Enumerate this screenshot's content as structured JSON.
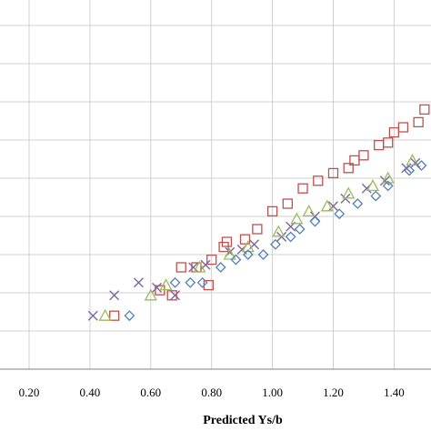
{
  "chart_data": {
    "type": "scatter",
    "title": "",
    "xlabel": "Predicted Ys/b",
    "ylabel": "",
    "xlim": [
      0.0,
      1.5
    ],
    "ylim": [
      0.0,
      1.5
    ],
    "x_ticks": [
      "0.20",
      "0.40",
      "0.60",
      "0.80",
      "1.00",
      "1.20",
      "1.40"
    ],
    "grid": true,
    "legend": "none visible",
    "series": [
      {
        "marker": "square",
        "color": "#c0504d",
        "points": [
          [
            0.48,
            0.21
          ],
          [
            0.63,
            0.31
          ],
          [
            0.67,
            0.29
          ],
          [
            0.7,
            0.4
          ],
          [
            0.75,
            0.4
          ],
          [
            0.79,
            0.33
          ],
          [
            0.8,
            0.43
          ],
          [
            0.84,
            0.48
          ],
          [
            0.85,
            0.5
          ],
          [
            0.91,
            0.51
          ],
          [
            0.95,
            0.55
          ],
          [
            1.0,
            0.62
          ],
          [
            1.05,
            0.65
          ],
          [
            1.1,
            0.71
          ],
          [
            1.15,
            0.74
          ],
          [
            1.2,
            0.77
          ],
          [
            1.25,
            0.79
          ],
          [
            1.27,
            0.82
          ],
          [
            1.3,
            0.84
          ],
          [
            1.35,
            0.88
          ],
          [
            1.38,
            0.89
          ],
          [
            1.4,
            0.93
          ],
          [
            1.43,
            0.95
          ],
          [
            1.48,
            0.97
          ],
          [
            1.5,
            1.02
          ]
        ]
      },
      {
        "marker": "x",
        "color": "#8064a2",
        "points": [
          [
            0.41,
            0.21
          ],
          [
            0.48,
            0.29
          ],
          [
            0.56,
            0.34
          ],
          [
            0.62,
            0.32
          ],
          [
            0.68,
            0.29
          ],
          [
            0.74,
            0.4
          ],
          [
            0.78,
            0.41
          ],
          [
            0.86,
            0.46
          ],
          [
            0.9,
            0.47
          ],
          [
            0.94,
            0.49
          ],
          [
            1.03,
            0.52
          ],
          [
            1.06,
            0.56
          ],
          [
            1.14,
            0.6
          ],
          [
            1.2,
            0.64
          ],
          [
            1.24,
            0.67
          ],
          [
            1.31,
            0.71
          ],
          [
            1.37,
            0.74
          ],
          [
            1.44,
            0.79
          ],
          [
            1.47,
            0.81
          ]
        ]
      },
      {
        "marker": "triangle",
        "color": "#9bbb59",
        "points": [
          [
            0.45,
            0.21
          ],
          [
            0.6,
            0.29
          ],
          [
            0.65,
            0.33
          ],
          [
            0.76,
            0.4
          ],
          [
            0.86,
            0.45
          ],
          [
            0.92,
            0.48
          ],
          [
            1.02,
            0.54
          ],
          [
            1.08,
            0.59
          ],
          [
            1.12,
            0.62
          ],
          [
            1.18,
            0.64
          ],
          [
            1.25,
            0.69
          ],
          [
            1.33,
            0.72
          ],
          [
            1.38,
            0.75
          ],
          [
            1.46,
            0.82
          ]
        ]
      },
      {
        "marker": "diamond",
        "color": "#4f81bd",
        "points": [
          [
            0.53,
            0.21
          ],
          [
            0.68,
            0.34
          ],
          [
            0.73,
            0.34
          ],
          [
            0.77,
            0.34
          ],
          [
            0.83,
            0.4
          ],
          [
            0.88,
            0.43
          ],
          [
            0.92,
            0.45
          ],
          [
            0.97,
            0.45
          ],
          [
            1.01,
            0.49
          ],
          [
            1.06,
            0.52
          ],
          [
            1.09,
            0.55
          ],
          [
            1.14,
            0.58
          ],
          [
            1.22,
            0.61
          ],
          [
            1.28,
            0.65
          ],
          [
            1.34,
            0.68
          ],
          [
            1.38,
            0.72
          ],
          [
            1.45,
            0.78
          ],
          [
            1.49,
            0.8
          ]
        ]
      }
    ]
  }
}
